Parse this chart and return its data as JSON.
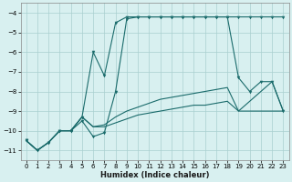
{
  "bg_color": "#d8f0f0",
  "grid_color": "#aacfcf",
  "line_color": "#1a6b6b",
  "xlabel": "Humidex (Indice chaleur)",
  "xlim": [
    -0.5,
    23.5
  ],
  "ylim": [
    -11.5,
    -3.5
  ],
  "yticks": [
    -11,
    -10,
    -9,
    -8,
    -7,
    -6,
    -5,
    -4
  ],
  "xticks": [
    0,
    1,
    2,
    3,
    4,
    5,
    6,
    7,
    8,
    9,
    10,
    11,
    12,
    13,
    14,
    15,
    16,
    17,
    18,
    19,
    20,
    21,
    22,
    23
  ],
  "series1_x": [
    0,
    1,
    2,
    3,
    4,
    5,
    6,
    7,
    8,
    9,
    10,
    11,
    12,
    13,
    14,
    15,
    16,
    17,
    18,
    19,
    20,
    21,
    22,
    23
  ],
  "series1_y": [
    -10.5,
    -11.0,
    -10.6,
    -10.0,
    -10.0,
    -9.5,
    -10.3,
    -10.1,
    -8.0,
    -4.3,
    -4.2,
    -4.2,
    -4.2,
    -4.2,
    -4.2,
    -4.2,
    -4.2,
    -4.2,
    -4.2,
    -4.2,
    -4.2,
    -4.2,
    -4.2,
    -4.2
  ],
  "series2_x": [
    0,
    1,
    2,
    3,
    4,
    5,
    6,
    7,
    8,
    9,
    10,
    11,
    12,
    13,
    14,
    15,
    16,
    17,
    18,
    19,
    20,
    21,
    22,
    23
  ],
  "series2_y": [
    -10.5,
    -11.0,
    -10.6,
    -10.0,
    -10.0,
    -9.3,
    -6.0,
    -7.2,
    -4.5,
    -4.2,
    -4.2,
    -4.2,
    -4.2,
    -4.2,
    -4.2,
    -4.2,
    -4.2,
    -4.2,
    -4.2,
    -7.3,
    -8.0,
    -7.5,
    -7.5,
    -9.0
  ],
  "series3_x": [
    0,
    1,
    2,
    3,
    4,
    5,
    6,
    7,
    8,
    9,
    10,
    11,
    12,
    13,
    14,
    15,
    16,
    17,
    18,
    19,
    20,
    21,
    22,
    23
  ],
  "series3_y": [
    -10.5,
    -11.0,
    -10.6,
    -10.0,
    -10.0,
    -9.3,
    -9.8,
    -9.7,
    -9.3,
    -9.0,
    -8.8,
    -8.6,
    -8.4,
    -8.3,
    -8.2,
    -8.1,
    -8.0,
    -7.9,
    -7.8,
    -9.0,
    -8.5,
    -8.0,
    -7.5,
    -9.0
  ],
  "series4_x": [
    0,
    1,
    2,
    3,
    4,
    5,
    6,
    7,
    8,
    9,
    10,
    11,
    12,
    13,
    14,
    15,
    16,
    17,
    18,
    19,
    20,
    21,
    22,
    23
  ],
  "series4_y": [
    -10.5,
    -11.0,
    -10.6,
    -10.0,
    -10.0,
    -9.3,
    -9.8,
    -9.8,
    -9.6,
    -9.4,
    -9.2,
    -9.1,
    -9.0,
    -8.9,
    -8.8,
    -8.7,
    -8.7,
    -8.6,
    -8.5,
    -9.0,
    -9.0,
    -9.0,
    -9.0,
    -9.0
  ]
}
